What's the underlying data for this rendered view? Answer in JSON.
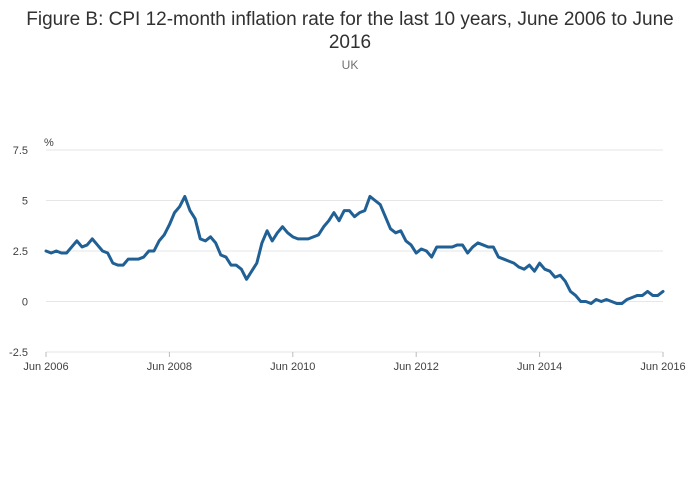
{
  "chart_data": {
    "type": "line",
    "title_lines": [
      "Figure B: CPI 12-month inflation rate for the last 10 years, June 2006 to June",
      "2016"
    ],
    "subtitle": "UK",
    "ylabel": "%",
    "ylim": [
      -2.5,
      7.5
    ],
    "yticks": [
      -2.5,
      0,
      2.5,
      5,
      7.5
    ],
    "ytick_labels": [
      "-2.5",
      "0",
      "2.5",
      "5",
      "7.5"
    ],
    "xticks": [
      "2006-06",
      "2008-06",
      "2010-06",
      "2012-06",
      "2014-06",
      "2016-06"
    ],
    "xtick_labels": [
      "Jun 2006",
      "Jun 2008",
      "Jun 2010",
      "Jun 2012",
      "Jun 2014",
      "Jun 2016"
    ],
    "grid": true,
    "line_color": "#206095",
    "series": [
      {
        "start": "2006-06",
        "frequency": "monthly",
        "values": [
          2.5,
          2.4,
          2.5,
          2.4,
          2.4,
          2.7,
          3.0,
          2.7,
          2.8,
          3.1,
          2.8,
          2.5,
          2.4,
          1.9,
          1.8,
          1.8,
          2.1,
          2.1,
          2.1,
          2.2,
          2.5,
          2.5,
          3.0,
          3.3,
          3.8,
          4.4,
          4.7,
          5.2,
          4.5,
          4.1,
          3.1,
          3.0,
          3.2,
          2.9,
          2.3,
          2.2,
          1.8,
          1.8,
          1.6,
          1.1,
          1.5,
          1.9,
          2.9,
          3.5,
          3.0,
          3.4,
          3.7,
          3.4,
          3.2,
          3.1,
          3.1,
          3.1,
          3.2,
          3.3,
          3.7,
          4.0,
          4.4,
          4.0,
          4.5,
          4.5,
          4.2,
          4.4,
          4.5,
          5.2,
          5.0,
          4.8,
          4.2,
          3.6,
          3.4,
          3.5,
          3.0,
          2.8,
          2.4,
          2.6,
          2.5,
          2.2,
          2.7,
          2.7,
          2.7,
          2.7,
          2.8,
          2.8,
          2.4,
          2.7,
          2.9,
          2.8,
          2.7,
          2.7,
          2.2,
          2.1,
          2.0,
          1.9,
          1.7,
          1.6,
          1.8,
          1.5,
          1.9,
          1.6,
          1.5,
          1.2,
          1.3,
          1.0,
          0.5,
          0.3,
          0.0,
          0.0,
          -0.1,
          0.1,
          0.0,
          0.1,
          0.0,
          -0.1,
          -0.1,
          0.1,
          0.2,
          0.3,
          0.3,
          0.5,
          0.3,
          0.3,
          0.5
        ]
      }
    ]
  }
}
